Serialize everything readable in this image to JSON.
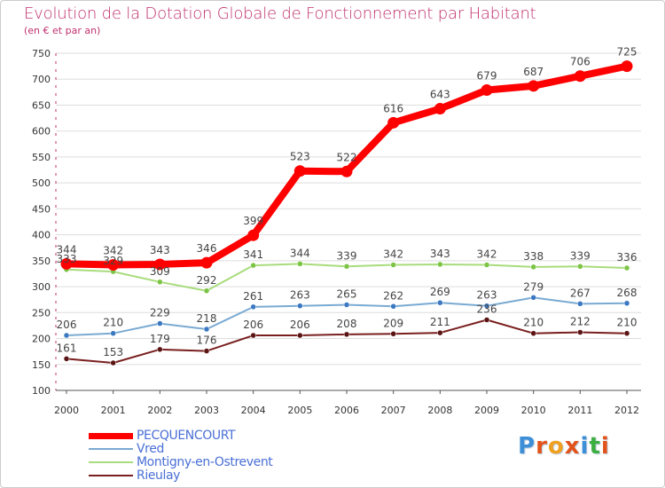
{
  "title": "Evolution de la Dotation Globale de Fonctionnement par Habitant",
  "subtitle": "(en € et par an)",
  "logo": {
    "text": "Proxiti",
    "letters": [
      {
        "ch": "P",
        "color": "#3d8fd8"
      },
      {
        "ch": "r",
        "color": "#e2531c"
      },
      {
        "ch": "o",
        "color": "#f0a020"
      },
      {
        "ch": "x",
        "color": "#e2531c"
      },
      {
        "ch": "i",
        "color": "#3d8fd8"
      },
      {
        "ch": "t",
        "color": "#3cae42"
      },
      {
        "ch": "i",
        "color": "#e2531c"
      }
    ]
  },
  "chart_data": {
    "type": "line",
    "title": "Evolution de la Dotation Globale de Fonctionnement par Habitant",
    "subtitle": "(en € et par an)",
    "x": [
      "2000",
      "2001",
      "2002",
      "2003",
      "2004",
      "2005",
      "2006",
      "2007",
      "2008",
      "2009",
      "2010",
      "2011",
      "2012"
    ],
    "ylim": [
      100,
      750
    ],
    "yticks": [
      100,
      150,
      200,
      250,
      300,
      350,
      400,
      450,
      500,
      550,
      600,
      650,
      700,
      750
    ],
    "grid": "horizontal",
    "legend_position": "bottom-left",
    "series": [
      {
        "name": "Rieulay",
        "color": "#7a1f1f",
        "dot": "#5a1414",
        "values": [
          161,
          153,
          179,
          176,
          206,
          206,
          208,
          209,
          211,
          236,
          210,
          212,
          210
        ]
      },
      {
        "name": "Montigny-en-Ostrevent",
        "color": "#a8dc7c",
        "dot": "#7cc444",
        "values": [
          333,
          329,
          309,
          292,
          341,
          344,
          339,
          342,
          343,
          342,
          338,
          339,
          336
        ]
      },
      {
        "name": "Vred",
        "color": "#7aaad2",
        "dot": "#3a78c2",
        "values": [
          206,
          210,
          229,
          218,
          261,
          263,
          265,
          262,
          269,
          263,
          279,
          267,
          268
        ]
      },
      {
        "name": "PECQUENCOURT",
        "color": "#ff0000",
        "dot": "#ff0000",
        "values": [
          344,
          342,
          343,
          346,
          399,
          523,
          522,
          616,
          643,
          679,
          687,
          706,
          725
        ],
        "bold": true
      }
    ],
    "point_labels": {
      "Rieulay": [
        "161",
        "153",
        "179",
        "176",
        "206",
        "206",
        "208",
        "209",
        "211",
        "236",
        "210",
        "212",
        "210"
      ],
      "Montigny-en-Ostrevent": [
        "333",
        "329",
        "309",
        "292",
        "341",
        "344",
        "339",
        "342",
        "343",
        "342",
        "338",
        "339",
        "336"
      ],
      "Vred": [
        "206",
        "210",
        "229",
        "218",
        "261",
        "263",
        "265",
        "262",
        "269",
        "263",
        "279",
        "267",
        "268"
      ],
      "PECQUENCOURT": [
        "344",
        "342",
        "343",
        "346",
        "399",
        "523",
        "522",
        "616",
        "643",
        "679",
        "687",
        "706",
        "725"
      ]
    }
  },
  "legend": [
    {
      "name": "PECQUENCOURT",
      "color": "#ff0000",
      "text_color": "#4a6fd6",
      "thick": true
    },
    {
      "name": "Vred",
      "color": "#7aaad2",
      "text_color": "#4a6fd6",
      "thick": false
    },
    {
      "name": "Montigny-en-Ostrevent",
      "color": "#a8dc7c",
      "text_color": "#4a6fd6",
      "thick": false
    },
    {
      "name": "Rieulay",
      "color": "#7a1f1f",
      "text_color": "#4a6fd6",
      "thick": false
    }
  ]
}
